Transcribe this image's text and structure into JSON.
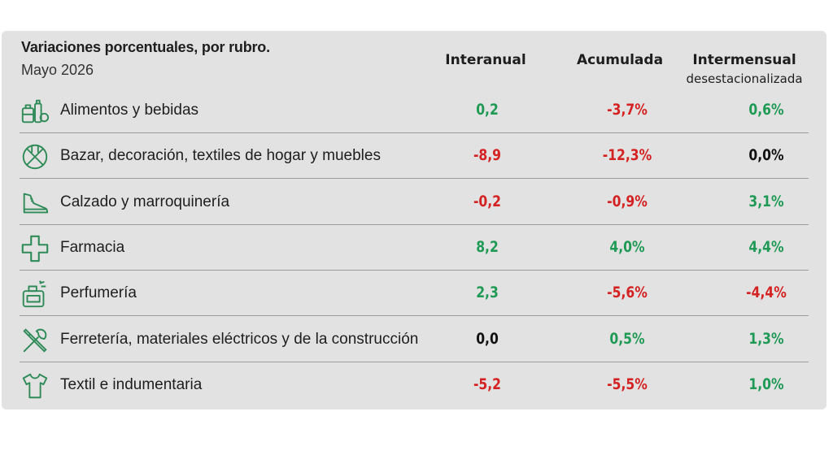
{
  "header": {
    "title": "Variaciones porcentuales, por rubro.",
    "subtitle": "Mayo 2026",
    "columns": [
      {
        "label": "Interanual",
        "sub": ""
      },
      {
        "label": "Acumulada",
        "sub": ""
      },
      {
        "label": "Intermensual",
        "sub": "desestacionalizada"
      }
    ]
  },
  "colors": {
    "positive": "#1f9a55",
    "negative": "#d42222",
    "zero": "#111111",
    "card": "#e2e2e2"
  },
  "rows": [
    {
      "icon": "grocery-icon",
      "label": "Alimentos y bebidas",
      "interanual": "0,2",
      "acumulada": "-3,7%",
      "intermensual": "0,6%"
    },
    {
      "icon": "home-goods-icon",
      "label": "Bazar, decoración, textiles de hogar y muebles",
      "interanual": "-8,9",
      "acumulada": "-12,3%",
      "intermensual": "0,0%"
    },
    {
      "icon": "shoe-icon",
      "label": "Calzado y marroquinería",
      "interanual": "-0,2",
      "acumulada": "-0,9%",
      "intermensual": "3,1%"
    },
    {
      "icon": "pharmacy-cross-icon",
      "label": "Farmacia",
      "interanual": "8,2",
      "acumulada": "4,0%",
      "intermensual": "4,4%"
    },
    {
      "icon": "perfume-icon",
      "label": "Perfumería",
      "interanual": "2,3",
      "acumulada": "-5,6%",
      "intermensual": "-4,4%"
    },
    {
      "icon": "tools-icon",
      "label": "Ferretería, materiales eléctricos y de la construcción",
      "interanual": "0,0",
      "acumulada": "0,5%",
      "intermensual": "1,3%"
    },
    {
      "icon": "shirt-icon",
      "label": "Textil e indumentaria",
      "interanual": "-5,2",
      "acumulada": "-5,5%",
      "intermensual": "1,0%"
    }
  ],
  "chart_data": {
    "type": "table",
    "title": "Variaciones porcentuales, por rubro.",
    "subtitle": "Mayo 2026",
    "columns": [
      "Interanual",
      "Acumulada",
      "Intermensual desestacionalizada"
    ],
    "categories": [
      "Alimentos y bebidas",
      "Bazar, decoración, textiles de hogar y muebles",
      "Calzado y marroquinería",
      "Farmacia",
      "Perfumería",
      "Ferretería, materiales eléctricos y de la construcción",
      "Textil e indumentaria"
    ],
    "series": [
      {
        "name": "Interanual",
        "values": [
          0.2,
          -8.9,
          -0.2,
          8.2,
          2.3,
          0.0,
          -5.2
        ]
      },
      {
        "name": "Acumulada",
        "values": [
          -3.7,
          -12.3,
          -0.9,
          4.0,
          -5.6,
          0.5,
          -5.5
        ]
      },
      {
        "name": "Intermensual desestacionalizada",
        "values": [
          0.6,
          0.0,
          3.1,
          4.4,
          -4.4,
          1.3,
          1.0
        ]
      }
    ]
  }
}
